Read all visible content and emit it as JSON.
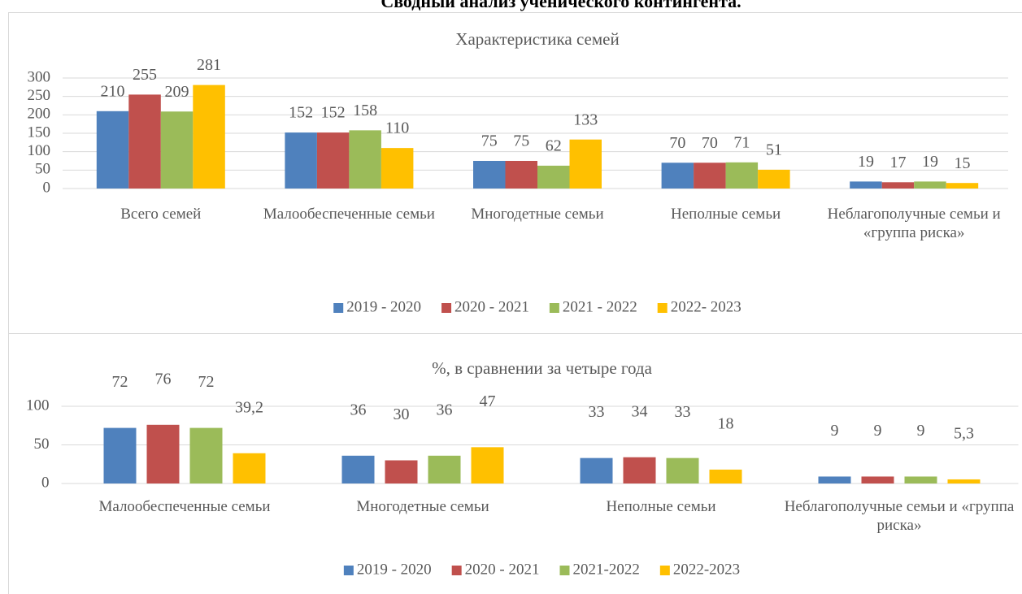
{
  "page_title": "Сводный анализ ученического контингента.",
  "chart_data": [
    {
      "type": "bar",
      "title": "Характеристика семей",
      "categories": [
        "Всего семей",
        "Малообеспеченные семьи",
        "Многодетные семьи",
        "Неполные семьи",
        "Неблагополучные семьи и «группа риска»"
      ],
      "series": [
        {
          "name": "2019 - 2020",
          "color": "#4f81bd",
          "values": [
            210,
            152,
            75,
            70,
            19
          ]
        },
        {
          "name": "2020 - 2021",
          "color": "#c0504d",
          "values": [
            255,
            152,
            75,
            70,
            17
          ]
        },
        {
          "name": "2021 - 2022",
          "color": "#9bbb59",
          "values": [
            209,
            158,
            62,
            71,
            19
          ]
        },
        {
          "name": "2022- 2023",
          "color": "#ffc000",
          "values": [
            281,
            110,
            133,
            51,
            15
          ]
        }
      ],
      "ylim": [
        0,
        300
      ],
      "yticks": [
        0,
        50,
        100,
        150,
        200,
        250,
        300
      ],
      "grid": true,
      "legend": "bottom"
    },
    {
      "type": "bar",
      "title": "%, в сравнении за четыре года",
      "categories": [
        "Малообеспеченные семьи",
        "Многодетные семьи",
        "Неполные семьи",
        "Неблагополучные семьи и «группа риска»"
      ],
      "series": [
        {
          "name": "2019 - 2020",
          "color": "#4f81bd",
          "values": [
            72,
            36,
            33,
            9
          ]
        },
        {
          "name": "2020 - 2021",
          "color": "#c0504d",
          "values": [
            76,
            30,
            34,
            9
          ]
        },
        {
          "name": "2021-2022",
          "color": "#9bbb59",
          "values": [
            72,
            36,
            33,
            9
          ]
        },
        {
          "name": "2022-2023",
          "color": "#ffc000",
          "values": [
            39.2,
            47,
            18,
            5.3
          ],
          "value_labels": [
            "39,2",
            "47",
            "18",
            "5,3"
          ]
        }
      ],
      "ylim": [
        0,
        100
      ],
      "yticks": [
        0,
        50,
        100
      ],
      "grid": true,
      "legend": "bottom"
    }
  ]
}
